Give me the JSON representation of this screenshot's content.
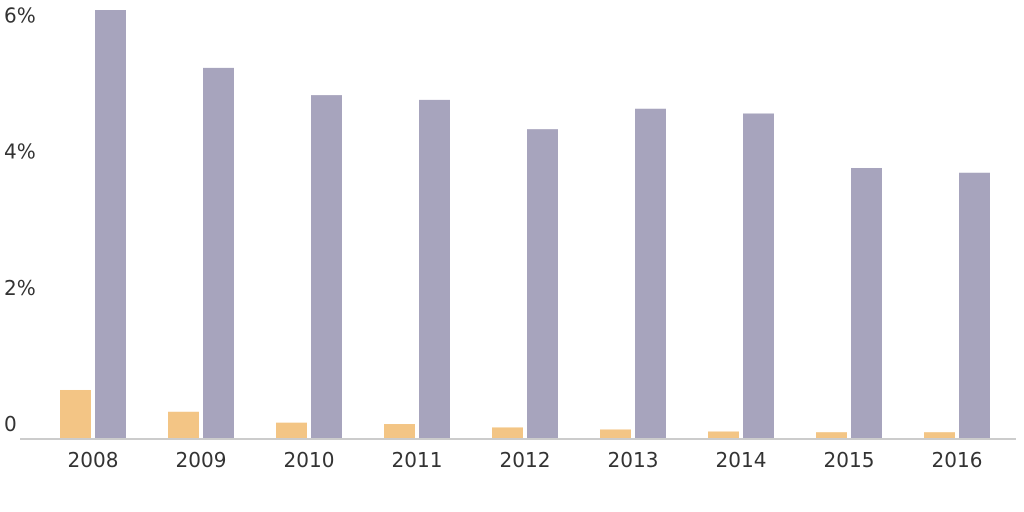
{
  "chart_data": {
    "type": "bar",
    "title": "",
    "xlabel": "",
    "ylabel": "",
    "categories": [
      "2008",
      "2009",
      "2010",
      "2011",
      "2012",
      "2013",
      "2014",
      "2015",
      "2016"
    ],
    "series": [
      {
        "color": "#f3c585",
        "values": [
          0.72,
          0.4,
          0.24,
          0.22,
          0.17,
          0.14,
          0.11,
          0.1,
          0.1
        ]
      },
      {
        "color": "#a7a4bd",
        "values": [
          6.3,
          5.45,
          5.05,
          4.98,
          4.55,
          4.85,
          4.78,
          3.98,
          3.91
        ]
      }
    ],
    "ylim": [
      0,
      6.3
    ],
    "y_ticks": [
      {
        "value": 0,
        "label": "0"
      },
      {
        "value": 2,
        "label": "2%"
      },
      {
        "value": 4,
        "label": "4%"
      },
      {
        "value": 6,
        "label": "6%"
      }
    ],
    "grid": false,
    "legend": "none"
  }
}
